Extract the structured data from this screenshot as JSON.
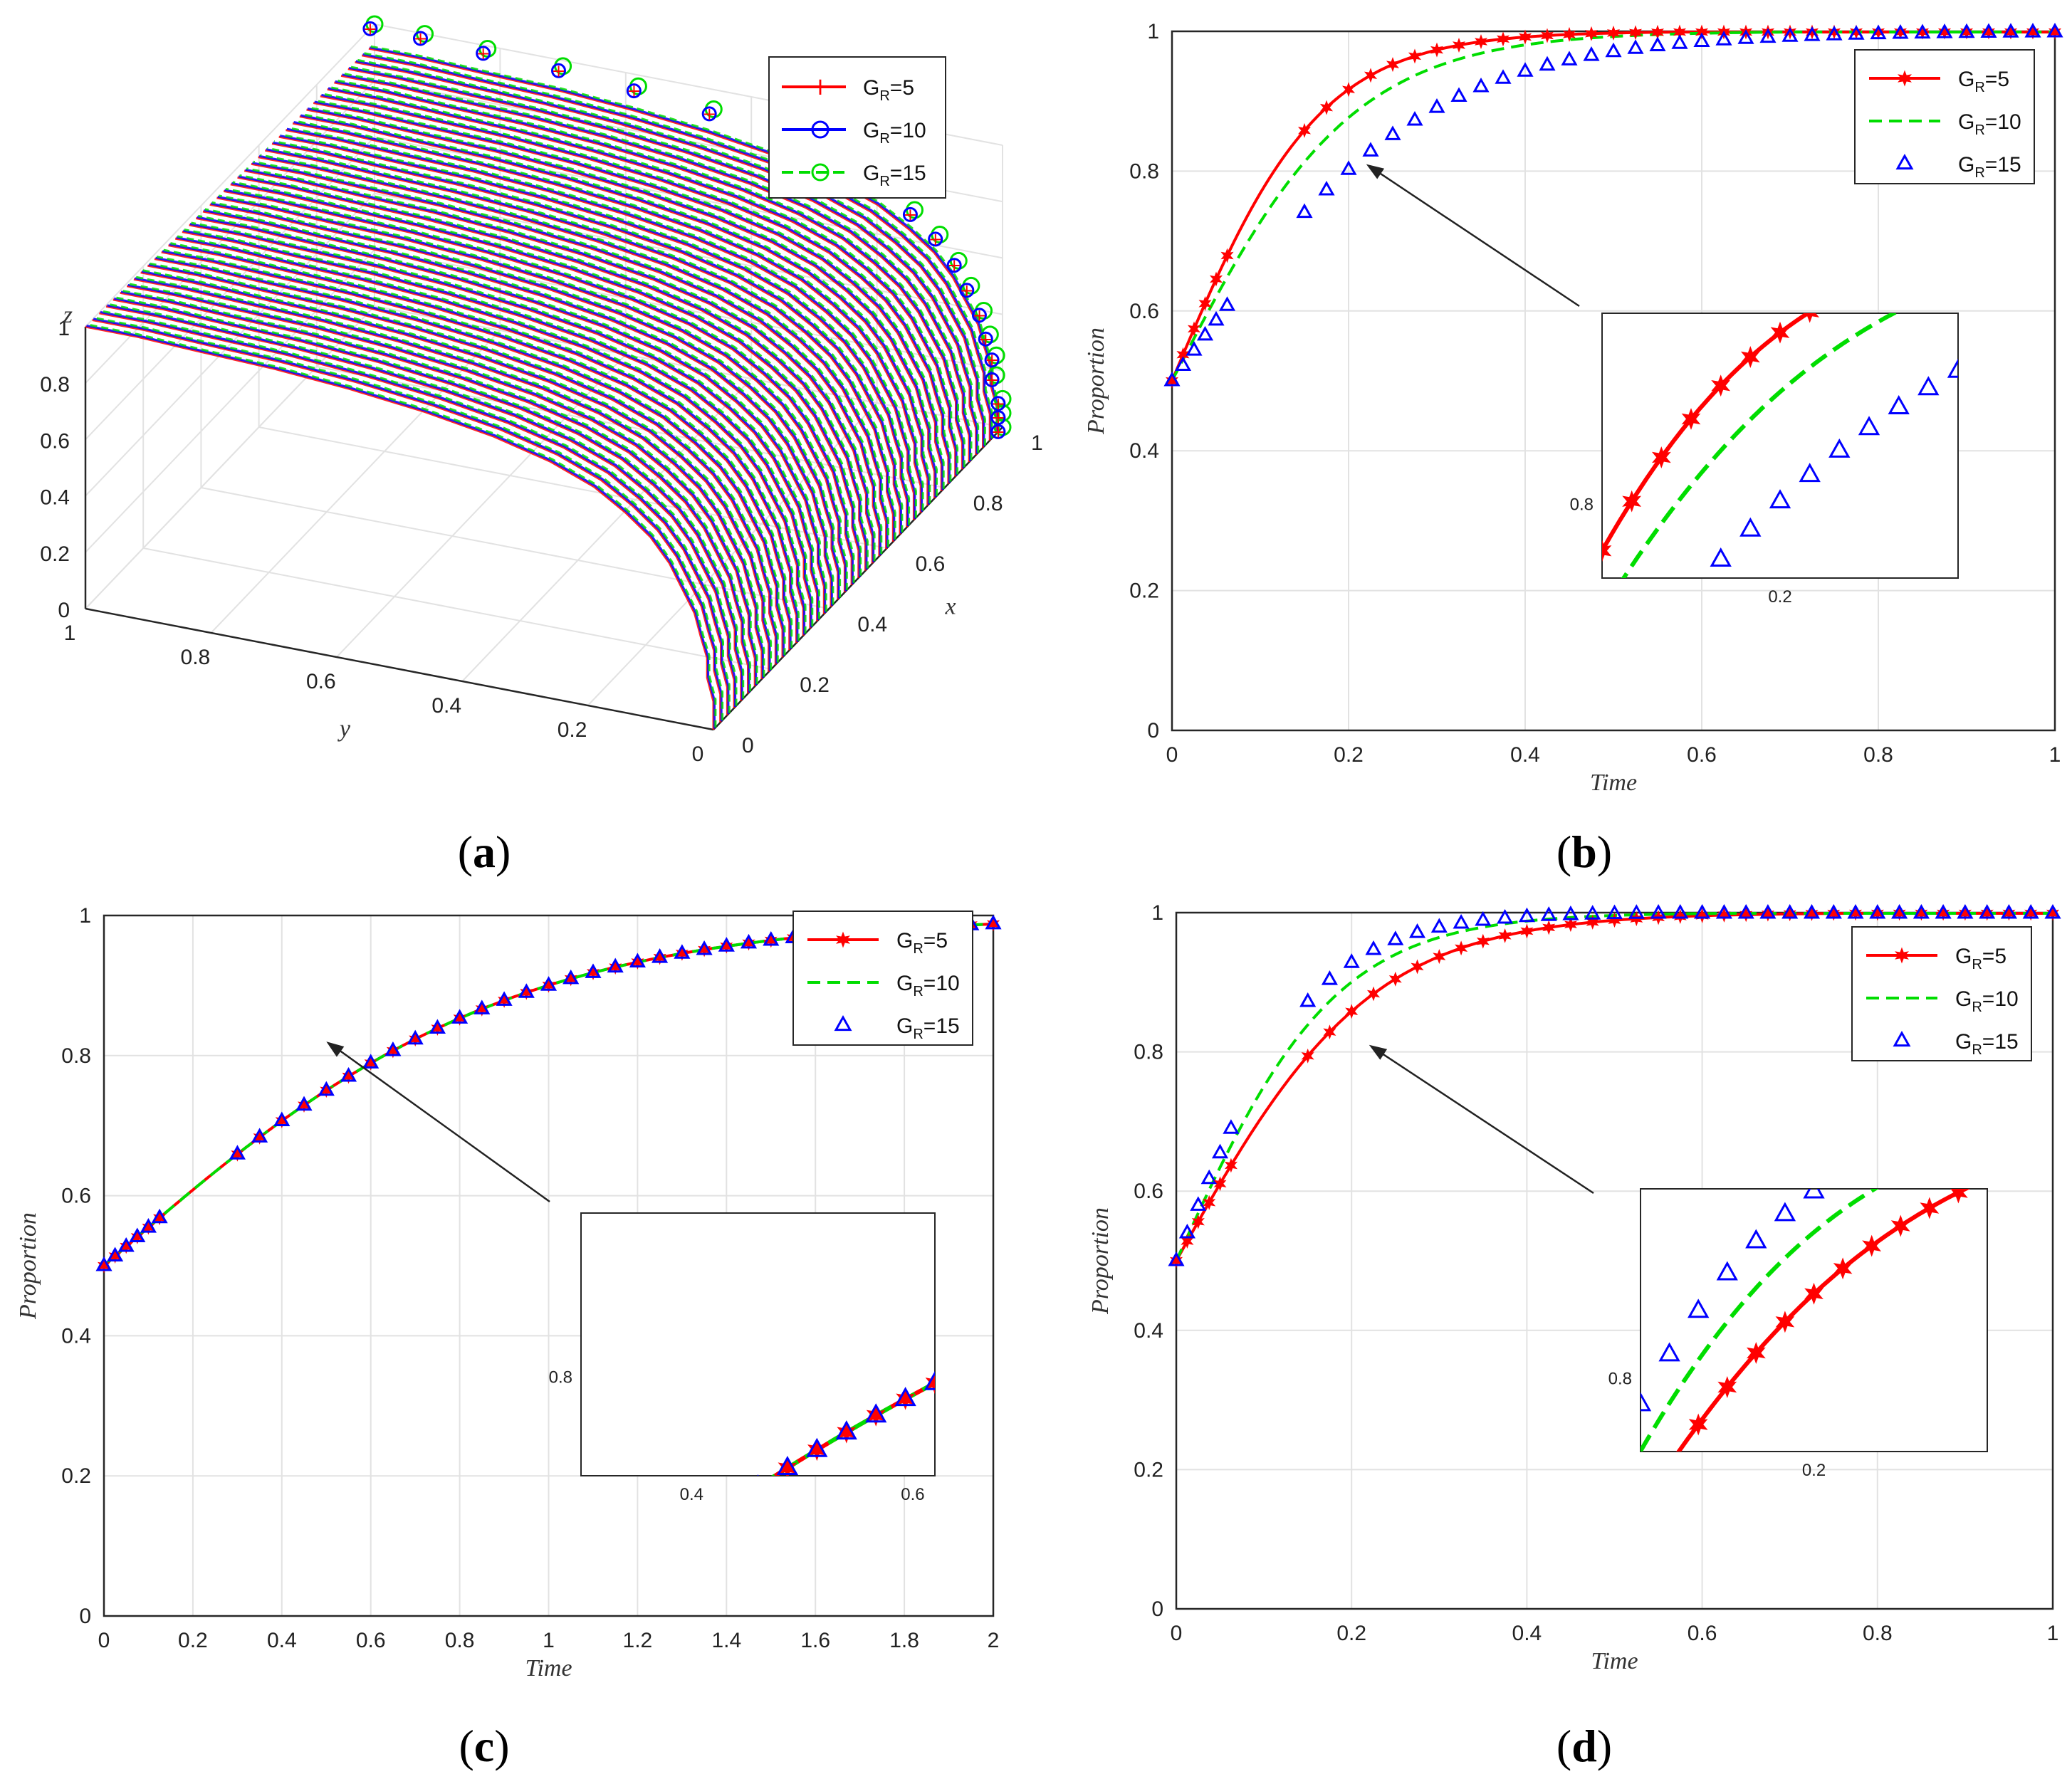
{
  "figure": {
    "captions": [
      "a",
      "b",
      "c",
      "d"
    ]
  },
  "colors": {
    "gr5": "#ff0000",
    "gr10": "#00dd00",
    "gr15": "#0000ff",
    "gr10_panel_a": "#0000ff",
    "gr15_panel_a": "#00dd00",
    "grid": "#e2e2e2",
    "axis": "#262626",
    "arrow": "#222222"
  },
  "chart_data": [
    {
      "id": "a",
      "type": "line3d",
      "title": "",
      "xlabel": "x",
      "ylabel": "y",
      "zlabel": "z",
      "x_ticks": [
        "0",
        "0.2",
        "0.4",
        "0.6",
        "0.8",
        "1"
      ],
      "y_ticks": [
        "1",
        "0.8",
        "0.6",
        "0.4",
        "0.2",
        "0"
      ],
      "z_ticks": [
        "0",
        "0.2",
        "0.4",
        "0.6",
        "0.8",
        "1"
      ],
      "legend": [
        {
          "base": "G",
          "sub": "R",
          "suffix": "=5",
          "marker": "plus",
          "line": "solid",
          "color": "#ff0000"
        },
        {
          "base": "G",
          "sub": "R",
          "suffix": "=10",
          "marker": "circle",
          "line": "solid",
          "color": "#0000ff"
        },
        {
          "base": "G",
          "sub": "R",
          "suffix": "=15",
          "marker": "circle",
          "line": "dashed",
          "color": "#00dd00"
        }
      ],
      "trajectory_points": [
        {
          "y": 0.0,
          "z": 0.0
        },
        {
          "y": 0.0,
          "z": 0.05
        },
        {
          "y": 0.0,
          "z": 0.1
        },
        {
          "y": 0.01,
          "z": 0.18
        },
        {
          "y": 0.01,
          "z": 0.25
        },
        {
          "y": 0.02,
          "z": 0.32
        },
        {
          "y": 0.03,
          "z": 0.4
        },
        {
          "y": 0.05,
          "z": 0.48
        },
        {
          "y": 0.07,
          "z": 0.56
        },
        {
          "y": 0.1,
          "z": 0.64
        },
        {
          "y": 0.14,
          "z": 0.71
        },
        {
          "y": 0.19,
          "z": 0.78
        },
        {
          "y": 0.26,
          "z": 0.84
        },
        {
          "y": 0.35,
          "z": 0.89
        },
        {
          "y": 0.46,
          "z": 0.93
        },
        {
          "y": 0.58,
          "z": 0.96
        },
        {
          "y": 0.7,
          "z": 0.98
        },
        {
          "y": 0.82,
          "z": 0.99
        },
        {
          "y": 0.92,
          "z": 1.0
        },
        {
          "y": 1.0,
          "z": 1.0
        }
      ]
    },
    {
      "id": "b",
      "type": "line",
      "xlabel": "Time",
      "ylabel": "Proportion",
      "xlim": [
        0,
        1
      ],
      "ylim": [
        0,
        1
      ],
      "x_ticks": [
        0,
        0.2,
        0.4,
        0.6,
        0.8,
        1
      ],
      "y_ticks": [
        0,
        0.2,
        0.4,
        0.6,
        0.8,
        1
      ],
      "legend": [
        {
          "base": "G",
          "sub": "R",
          "suffix": "=5",
          "style": "star-line",
          "color": "#ff0000"
        },
        {
          "base": "G",
          "sub": "R",
          "suffix": "=10",
          "style": "dashed",
          "color": "#00dd00"
        },
        {
          "base": "G",
          "sub": "R",
          "suffix": "=15",
          "style": "triangle",
          "color": "#0000ff"
        }
      ],
      "series": [
        {
          "name": "GR=5",
          "k": 12.0
        },
        {
          "name": "GR=10",
          "k": 9.8
        },
        {
          "name": "GR=15",
          "k": 7.0
        }
      ],
      "inset": {
        "xlim": [
          0.1,
          0.3
        ],
        "ylim": [
          0.75,
          0.93
        ],
        "tick_x": 0.2,
        "tick_x_label": "0.2",
        "tick_y": 0.8,
        "tick_y_label": "0.8"
      },
      "arrow_target": {
        "x": 0.22,
        "y": 0.81
      }
    },
    {
      "id": "c",
      "type": "line",
      "xlabel": "Time",
      "ylabel": "Proportion",
      "xlim": [
        0,
        2
      ],
      "ylim": [
        0,
        1
      ],
      "x_ticks": [
        0,
        0.2,
        0.4,
        0.6,
        0.8,
        1,
        1.2,
        1.4,
        1.6,
        1.8,
        2
      ],
      "y_ticks": [
        0,
        0.2,
        0.4,
        0.6,
        0.8,
        1
      ],
      "legend": [
        {
          "base": "G",
          "sub": "R",
          "suffix": "=5",
          "style": "star-line",
          "color": "#ff0000"
        },
        {
          "base": "G",
          "sub": "R",
          "suffix": "=10",
          "style": "dashed",
          "color": "#00dd00"
        },
        {
          "base": "G",
          "sub": "R",
          "suffix": "=15",
          "style": "triangle",
          "color": "#0000ff"
        }
      ],
      "series": [
        {
          "name": "GR=5",
          "k": 2.2
        },
        {
          "name": "GR=10",
          "k": 2.2
        },
        {
          "name": "GR=15",
          "k": 2.2
        }
      ],
      "inset": {
        "xlim": [
          0.3,
          0.62
        ],
        "ylim": [
          0.74,
          0.9
        ],
        "tick_x": [
          0.4,
          0.6
        ],
        "tick_x_label": [
          "0.4",
          "0.6"
        ],
        "tick_y": 0.8,
        "tick_y_label": "0.8"
      },
      "arrow_target": {
        "x": 0.5,
        "y": 0.82
      }
    },
    {
      "id": "d",
      "type": "line",
      "xlabel": "Time",
      "ylabel": "Proportion",
      "xlim": [
        0,
        1
      ],
      "ylim": [
        0,
        1
      ],
      "x_ticks": [
        0,
        0.2,
        0.4,
        0.6,
        0.8,
        1
      ],
      "y_ticks": [
        0,
        0.2,
        0.4,
        0.6,
        0.8,
        1
      ],
      "legend": [
        {
          "base": "G",
          "sub": "R",
          "suffix": "=5",
          "style": "star-line",
          "color": "#ff0000"
        },
        {
          "base": "G",
          "sub": "R",
          "suffix": "=10",
          "style": "dashed",
          "color": "#00dd00"
        },
        {
          "base": "G",
          "sub": "R",
          "suffix": "=15",
          "style": "triangle",
          "color": "#0000ff"
        }
      ],
      "series": [
        {
          "name": "GR=5",
          "k": 9.0
        },
        {
          "name": "GR=10",
          "k": 11.0
        },
        {
          "name": "GR=15",
          "k": 12.8
        }
      ],
      "inset": {
        "xlim": [
          0.1,
          0.3
        ],
        "ylim": [
          0.75,
          0.93
        ],
        "tick_x": 0.2,
        "tick_x_label": "0.2",
        "tick_y": 0.8,
        "tick_y_label": "0.8"
      },
      "arrow_target": {
        "x": 0.22,
        "y": 0.81
      }
    }
  ]
}
